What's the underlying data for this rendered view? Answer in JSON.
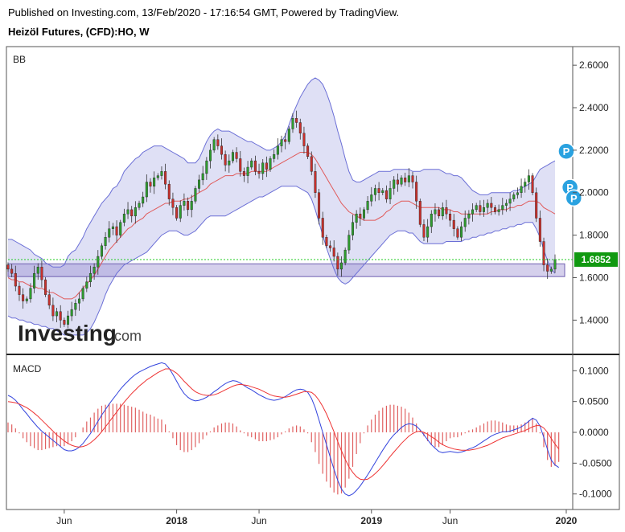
{
  "header": {
    "published": "Published on Investing.com, 13/Feb/2020 - 17:16:54 GMT, Powered by TradingView.",
    "title": "Heizöl Futures, (CFD):HO, W"
  },
  "logo": {
    "main": "Investing",
    "suffix": ".com"
  },
  "colors": {
    "up": "#2e9d2e",
    "down": "#c8302c",
    "band": "#6b6fd6",
    "band_fill": "#b9bbe8",
    "basis": "#e05a5a",
    "macd": "#3344dd",
    "signal": "#ee3333",
    "zone": "#8878c8",
    "last_price": "#22cc22",
    "price_tag": "#119911",
    "marker": "#2aa2e0"
  },
  "chart_data": [
    {
      "type": "candlestick",
      "panel_label": "BB",
      "y_ticks": [
        2.6,
        2.4,
        2.2,
        2.0,
        1.8,
        1.6,
        1.4
      ],
      "ylim": [
        1.25,
        2.68
      ],
      "x_tick_labels": [
        "Jun",
        "2018",
        "Jun",
        "2019",
        "Jun",
        "2020"
      ],
      "x_tick_weeks": [
        15,
        45,
        67,
        97,
        118,
        149
      ],
      "last_price": 1.6852,
      "last_price_label": "1.6852",
      "zone": [
        1.605,
        1.665
      ],
      "markers": [
        {
          "week": 149,
          "price": 2.195,
          "label": "P"
        },
        {
          "week": 150,
          "price": 2.025,
          "label": "P"
        },
        {
          "week": 151,
          "price": 1.975,
          "label": "P"
        }
      ],
      "close": [
        1.64,
        1.62,
        1.56,
        1.52,
        1.49,
        1.5,
        1.55,
        1.62,
        1.65,
        1.59,
        1.52,
        1.47,
        1.42,
        1.44,
        1.4,
        1.38,
        1.42,
        1.45,
        1.48,
        1.5,
        1.55,
        1.58,
        1.62,
        1.65,
        1.7,
        1.75,
        1.79,
        1.83,
        1.84,
        1.8,
        1.86,
        1.9,
        1.92,
        1.89,
        1.93,
        1.95,
        1.98,
        2.05,
        2.03,
        2.07,
        2.08,
        2.1,
        2.04,
        1.97,
        1.93,
        1.88,
        1.94,
        1.96,
        1.92,
        1.96,
        2.02,
        2.06,
        2.09,
        2.15,
        2.2,
        2.25,
        2.22,
        2.18,
        2.13,
        2.15,
        2.19,
        2.16,
        2.1,
        2.08,
        2.12,
        2.15,
        2.1,
        2.09,
        2.14,
        2.11,
        2.16,
        2.18,
        2.22,
        2.25,
        2.24,
        2.3,
        2.35,
        2.33,
        2.28,
        2.22,
        2.17,
        2.1,
        2.0,
        1.88,
        1.79,
        1.75,
        1.74,
        1.7,
        1.64,
        1.67,
        1.73,
        1.8,
        1.86,
        1.9,
        1.88,
        1.92,
        1.96,
        1.99,
        2.02,
        2.0,
        2.01,
        1.97,
        2.02,
        2.06,
        2.04,
        2.07,
        2.05,
        2.08,
        2.05,
        1.96,
        1.85,
        1.79,
        1.84,
        1.9,
        1.92,
        1.89,
        1.93,
        1.9,
        1.87,
        1.83,
        1.79,
        1.84,
        1.88,
        1.9,
        1.92,
        1.94,
        1.91,
        1.93,
        1.95,
        1.93,
        1.91,
        1.92,
        1.94,
        1.95,
        1.97,
        1.99,
        2.0,
        2.03,
        2.05,
        2.08,
        2.0,
        1.88,
        1.77,
        1.66,
        1.63,
        1.64,
        1.685
      ],
      "upper": [
        1.78,
        1.78,
        1.77,
        1.76,
        1.75,
        1.74,
        1.73,
        1.71,
        1.7,
        1.69,
        1.67,
        1.66,
        1.65,
        1.65,
        1.65,
        1.66,
        1.7,
        1.72,
        1.73,
        1.76,
        1.79,
        1.83,
        1.86,
        1.89,
        1.92,
        1.95,
        1.97,
        1.99,
        2.02,
        2.03,
        2.06,
        2.1,
        2.12,
        2.14,
        2.16,
        2.17,
        2.19,
        2.2,
        2.21,
        2.22,
        2.22,
        2.22,
        2.21,
        2.2,
        2.19,
        2.18,
        2.17,
        2.16,
        2.14,
        2.14,
        2.14,
        2.16,
        2.2,
        2.24,
        2.27,
        2.29,
        2.3,
        2.29,
        2.29,
        2.29,
        2.28,
        2.27,
        2.26,
        2.25,
        2.24,
        2.24,
        2.23,
        2.22,
        2.21,
        2.2,
        2.2,
        2.21,
        2.22,
        2.24,
        2.27,
        2.32,
        2.37,
        2.41,
        2.45,
        2.48,
        2.51,
        2.53,
        2.54,
        2.53,
        2.51,
        2.47,
        2.42,
        2.36,
        2.29,
        2.23,
        2.16,
        2.1,
        2.06,
        2.05,
        2.05,
        2.06,
        2.07,
        2.08,
        2.09,
        2.1,
        2.1,
        2.1,
        2.1,
        2.11,
        2.11,
        2.11,
        2.11,
        2.11,
        2.1,
        2.1,
        2.1,
        2.11,
        2.11,
        2.11,
        2.11,
        2.11,
        2.1,
        2.09,
        2.09,
        2.08,
        2.08,
        2.07,
        2.05,
        2.03,
        2.01,
        2.0,
        1.99,
        1.99,
        1.99,
        2.0,
        2.0,
        2.0,
        2.0,
        2.0,
        2.0,
        2.01,
        2.01,
        2.02,
        2.03,
        2.04,
        2.05,
        2.08,
        2.11,
        2.12,
        2.13,
        2.14,
        2.15
      ],
      "basis": [
        1.6,
        1.59,
        1.59,
        1.58,
        1.58,
        1.57,
        1.56,
        1.56,
        1.55,
        1.55,
        1.54,
        1.53,
        1.53,
        1.52,
        1.51,
        1.5,
        1.5,
        1.5,
        1.51,
        1.53,
        1.55,
        1.57,
        1.59,
        1.61,
        1.64,
        1.67,
        1.7,
        1.73,
        1.75,
        1.77,
        1.79,
        1.81,
        1.83,
        1.84,
        1.86,
        1.87,
        1.88,
        1.9,
        1.91,
        1.92,
        1.93,
        1.94,
        1.95,
        1.95,
        1.96,
        1.96,
        1.96,
        1.97,
        1.97,
        1.98,
        1.99,
        2.0,
        2.01,
        2.02,
        2.04,
        2.05,
        2.06,
        2.07,
        2.08,
        2.08,
        2.08,
        2.09,
        2.09,
        2.09,
        2.09,
        2.1,
        2.1,
        2.1,
        2.1,
        2.1,
        2.11,
        2.12,
        2.13,
        2.14,
        2.15,
        2.16,
        2.17,
        2.18,
        2.19,
        2.19,
        2.19,
        2.18,
        2.16,
        2.13,
        2.1,
        2.07,
        2.04,
        2.01,
        1.98,
        1.95,
        1.93,
        1.91,
        1.9,
        1.89,
        1.88,
        1.87,
        1.87,
        1.87,
        1.87,
        1.88,
        1.89,
        1.91,
        1.92,
        1.94,
        1.95,
        1.96,
        1.96,
        1.96,
        1.95,
        1.94,
        1.93,
        1.93,
        1.93,
        1.93,
        1.93,
        1.93,
        1.92,
        1.92,
        1.92,
        1.91,
        1.91,
        1.9,
        1.9,
        1.9,
        1.9,
        1.9,
        1.9,
        1.9,
        1.9,
        1.91,
        1.91,
        1.92,
        1.92,
        1.92,
        1.93,
        1.93,
        1.94,
        1.94,
        1.95,
        1.96,
        1.96,
        1.96,
        1.95,
        1.93,
        1.92,
        1.91,
        1.9
      ],
      "lower": [
        1.42,
        1.41,
        1.41,
        1.4,
        1.4,
        1.39,
        1.39,
        1.38,
        1.38,
        1.37,
        1.37,
        1.36,
        1.36,
        1.35,
        1.34,
        1.33,
        1.33,
        1.33,
        1.33,
        1.33,
        1.33,
        1.34,
        1.36,
        1.39,
        1.43,
        1.47,
        1.52,
        1.56,
        1.59,
        1.62,
        1.64,
        1.66,
        1.67,
        1.68,
        1.69,
        1.7,
        1.71,
        1.72,
        1.74,
        1.76,
        1.78,
        1.8,
        1.81,
        1.82,
        1.82,
        1.82,
        1.81,
        1.8,
        1.8,
        1.81,
        1.82,
        1.84,
        1.86,
        1.88,
        1.89,
        1.89,
        1.89,
        1.89,
        1.89,
        1.9,
        1.91,
        1.92,
        1.93,
        1.94,
        1.95,
        1.96,
        1.97,
        1.98,
        1.98,
        1.99,
        2.0,
        2.01,
        2.02,
        2.03,
        2.03,
        2.03,
        2.03,
        2.03,
        2.02,
        2.01,
        2.0,
        1.97,
        1.92,
        1.86,
        1.8,
        1.74,
        1.69,
        1.64,
        1.6,
        1.58,
        1.57,
        1.58,
        1.6,
        1.62,
        1.64,
        1.66,
        1.68,
        1.7,
        1.72,
        1.74,
        1.76,
        1.78,
        1.8,
        1.81,
        1.82,
        1.82,
        1.82,
        1.81,
        1.81,
        1.79,
        1.77,
        1.76,
        1.76,
        1.76,
        1.76,
        1.76,
        1.76,
        1.77,
        1.77,
        1.77,
        1.77,
        1.77,
        1.78,
        1.78,
        1.79,
        1.79,
        1.8,
        1.8,
        1.81,
        1.81,
        1.82,
        1.82,
        1.83,
        1.83,
        1.84,
        1.84,
        1.85,
        1.85,
        1.86,
        1.86,
        1.86,
        1.83,
        1.79,
        1.73,
        1.68,
        1.64,
        1.62
      ]
    },
    {
      "type": "macd",
      "panel_label": "MACD",
      "y_ticks": [
        0.1,
        0.05,
        0.0,
        -0.05,
        -0.1
      ],
      "ylim": [
        -0.12,
        0.12
      ],
      "x_tick_labels": [
        "Jun",
        "2018",
        "Jun",
        "2019",
        "Jun",
        "2020"
      ],
      "x_tick_weeks": [
        15,
        45,
        67,
        97,
        118,
        149
      ],
      "macd": [
        0.06,
        0.057,
        0.052,
        0.045,
        0.037,
        0.03,
        0.022,
        0.015,
        0.008,
        0.002,
        -0.003,
        -0.008,
        -0.013,
        -0.018,
        -0.023,
        -0.028,
        -0.03,
        -0.03,
        -0.028,
        -0.024,
        -0.018,
        -0.01,
        -0.002,
        0.008,
        0.018,
        0.028,
        0.037,
        0.046,
        0.054,
        0.062,
        0.07,
        0.077,
        0.083,
        0.089,
        0.094,
        0.098,
        0.101,
        0.104,
        0.107,
        0.109,
        0.111,
        0.113,
        0.111,
        0.104,
        0.094,
        0.083,
        0.072,
        0.063,
        0.057,
        0.053,
        0.051,
        0.052,
        0.054,
        0.057,
        0.061,
        0.066,
        0.07,
        0.075,
        0.079,
        0.082,
        0.084,
        0.083,
        0.08,
        0.076,
        0.072,
        0.069,
        0.065,
        0.061,
        0.058,
        0.055,
        0.053,
        0.052,
        0.053,
        0.055,
        0.058,
        0.062,
        0.066,
        0.069,
        0.07,
        0.069,
        0.065,
        0.055,
        0.04,
        0.02,
        0.0,
        -0.02,
        -0.04,
        -0.06,
        -0.078,
        -0.092,
        -0.1,
        -0.103,
        -0.1,
        -0.094,
        -0.087,
        -0.078,
        -0.069,
        -0.059,
        -0.049,
        -0.039,
        -0.029,
        -0.02,
        -0.011,
        -0.004,
        0.002,
        0.008,
        0.012,
        0.014,
        0.013,
        0.01,
        0.004,
        -0.004,
        -0.012,
        -0.02,
        -0.026,
        -0.031,
        -0.033,
        -0.032,
        -0.031,
        -0.032,
        -0.033,
        -0.032,
        -0.03,
        -0.027,
        -0.025,
        -0.022,
        -0.018,
        -0.014,
        -0.01,
        -0.006,
        -0.003,
        -0.001,
        0.001,
        0.001,
        0.002,
        0.004,
        0.006,
        0.009,
        0.013,
        0.018,
        0.023,
        0.02,
        0.01,
        -0.008,
        -0.028,
        -0.045,
        -0.053,
        -0.057
      ],
      "signal": [
        0.05,
        0.049,
        0.048,
        0.046,
        0.043,
        0.04,
        0.036,
        0.031,
        0.026,
        0.02,
        0.014,
        0.008,
        0.002,
        -0.004,
        -0.009,
        -0.014,
        -0.018,
        -0.021,
        -0.023,
        -0.024,
        -0.023,
        -0.021,
        -0.017,
        -0.012,
        -0.006,
        0.001,
        0.009,
        0.017,
        0.025,
        0.033,
        0.041,
        0.049,
        0.056,
        0.063,
        0.069,
        0.075,
        0.08,
        0.085,
        0.089,
        0.093,
        0.097,
        0.1,
        0.103,
        0.103,
        0.1,
        0.096,
        0.09,
        0.083,
        0.077,
        0.071,
        0.066,
        0.063,
        0.061,
        0.06,
        0.06,
        0.061,
        0.063,
        0.066,
        0.069,
        0.072,
        0.075,
        0.077,
        0.078,
        0.077,
        0.076,
        0.074,
        0.072,
        0.07,
        0.067,
        0.064,
        0.061,
        0.059,
        0.058,
        0.057,
        0.057,
        0.058,
        0.06,
        0.062,
        0.064,
        0.066,
        0.066,
        0.065,
        0.06,
        0.052,
        0.042,
        0.03,
        0.016,
        0.001,
        -0.015,
        -0.03,
        -0.044,
        -0.056,
        -0.065,
        -0.072,
        -0.076,
        -0.077,
        -0.076,
        -0.072,
        -0.067,
        -0.061,
        -0.054,
        -0.047,
        -0.039,
        -0.032,
        -0.025,
        -0.018,
        -0.012,
        -0.006,
        -0.002,
        0.001,
        0.002,
        0.0,
        -0.003,
        -0.007,
        -0.011,
        -0.016,
        -0.02,
        -0.023,
        -0.025,
        -0.027,
        -0.028,
        -0.029,
        -0.029,
        -0.029,
        -0.028,
        -0.027,
        -0.025,
        -0.023,
        -0.021,
        -0.018,
        -0.015,
        -0.012,
        -0.009,
        -0.007,
        -0.005,
        -0.003,
        -0.001,
        0.001,
        0.003,
        0.006,
        0.009,
        0.011,
        0.011,
        0.007,
        0.0,
        -0.01,
        -0.019,
        -0.027
      ]
    }
  ]
}
